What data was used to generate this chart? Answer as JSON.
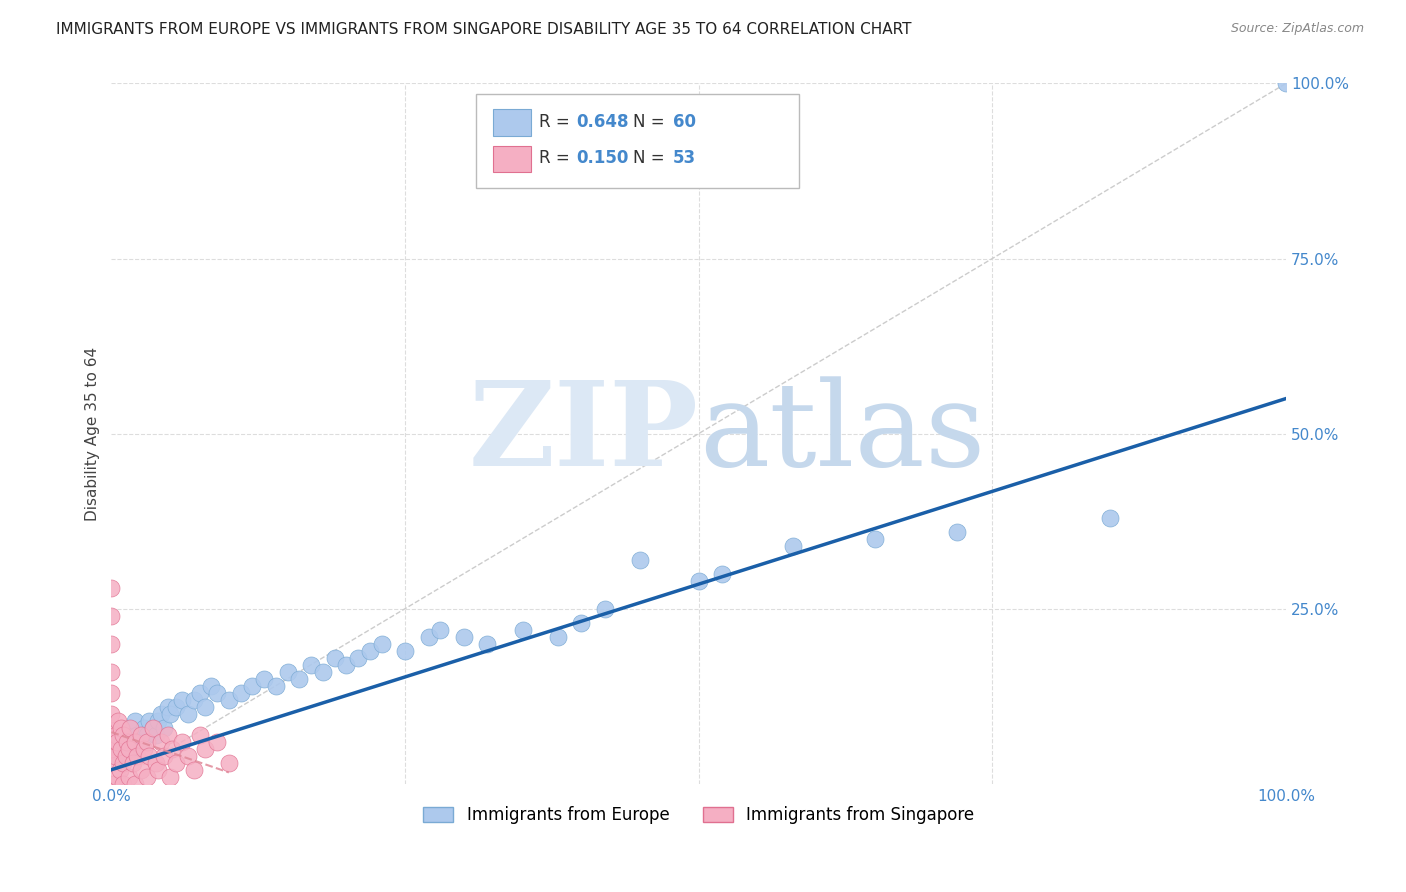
{
  "title": "IMMIGRANTS FROM EUROPE VS IMMIGRANTS FROM SINGAPORE DISABILITY AGE 35 TO 64 CORRELATION CHART",
  "source": "Source: ZipAtlas.com",
  "ylabel": "Disability Age 35 to 64",
  "xlim": [
    0,
    1.0
  ],
  "ylim": [
    0,
    1.0
  ],
  "europe_R": "0.648",
  "europe_N": "60",
  "singapore_R": "0.150",
  "singapore_N": "53",
  "europe_fill": "#adc9ed",
  "europe_edge": "#7aaad4",
  "singapore_fill": "#f5afc3",
  "singapore_edge": "#e07090",
  "europe_line": "#1a5fa8",
  "singapore_line_color": "#e08898",
  "diagonal_color": "#cccccc",
  "grid_color": "#dddddd",
  "tick_color": "#4488cc",
  "title_color": "#222222",
  "source_color": "#888888",
  "label_color": "#444444",
  "legend_text_color": "#333333",
  "legend_val_color": "#4488cc",
  "title_fontsize": 11,
  "axis_label_fontsize": 11,
  "tick_fontsize": 11,
  "legend_fontsize": 12,
  "scatter_size": 150
}
